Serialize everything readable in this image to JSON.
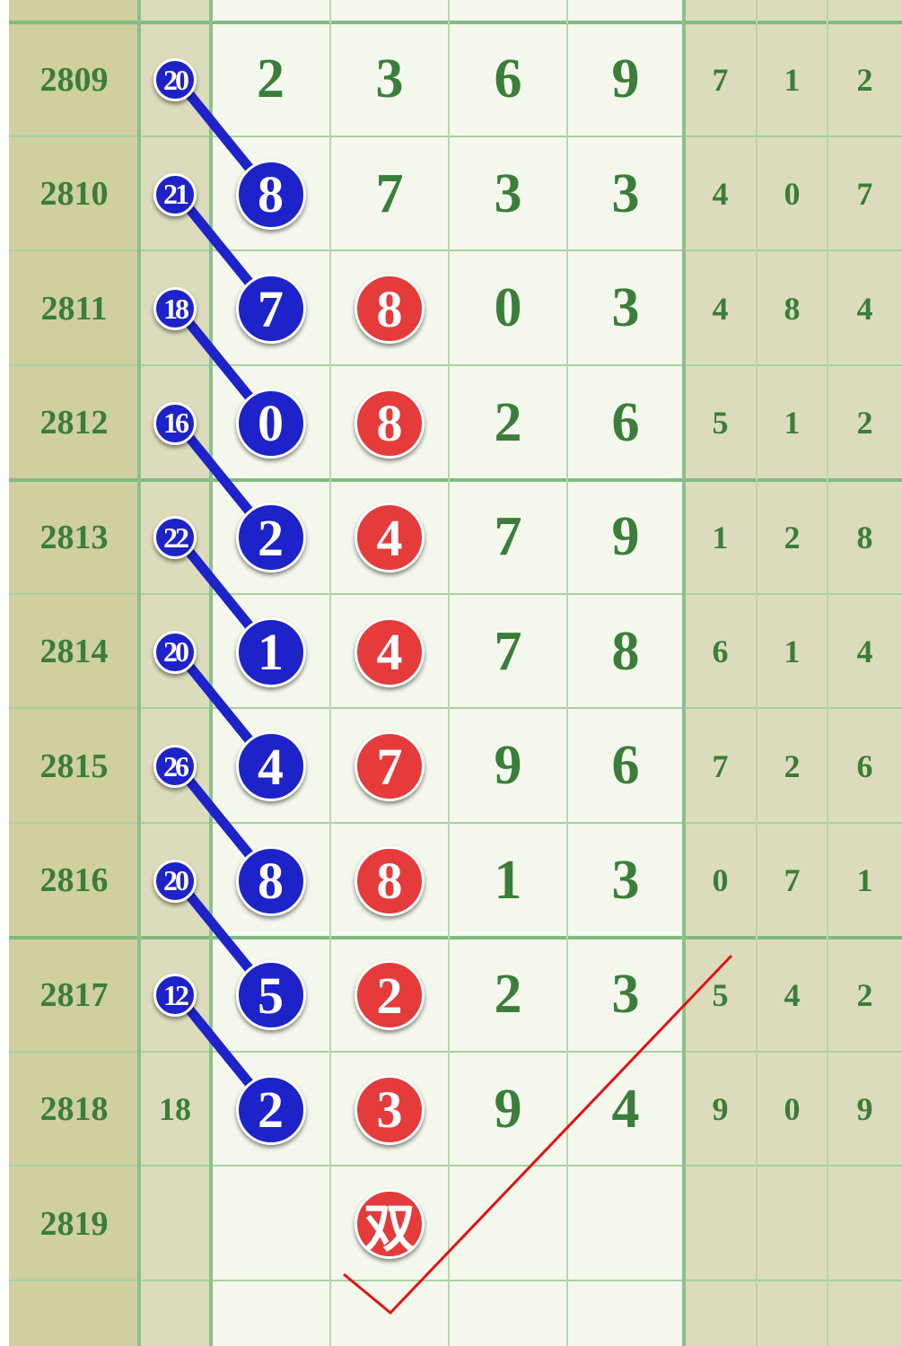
{
  "colors": {
    "issue_bg": "#cfcf9f",
    "side_bg": "#dcdcbc",
    "main_bg": "#f4f8ec",
    "text_green": "#3b7d3b",
    "ball_blue": "#1d22c9",
    "ball_red": "#e53b3b",
    "check_red": "#e81010"
  },
  "rows": [
    {
      "issue": "2809",
      "sum": "20",
      "sum_ball": true,
      "d1": "2",
      "d2": "3",
      "d3": "6",
      "d4": "9",
      "d1_ball": false,
      "d2_ball": false,
      "r1": "7",
      "r2": "1",
      "r3": "2"
    },
    {
      "issue": "2810",
      "sum": "21",
      "sum_ball": true,
      "d1": "8",
      "d2": "7",
      "d3": "3",
      "d4": "3",
      "d1_ball": true,
      "d2_ball": false,
      "r1": "4",
      "r2": "0",
      "r3": "7"
    },
    {
      "issue": "2811",
      "sum": "18",
      "sum_ball": true,
      "d1": "7",
      "d2": "8",
      "d3": "0",
      "d4": "3",
      "d1_ball": true,
      "d2_ball": true,
      "r1": "4",
      "r2": "8",
      "r3": "4"
    },
    {
      "issue": "2812",
      "sum": "16",
      "sum_ball": true,
      "d1": "0",
      "d2": "8",
      "d3": "2",
      "d4": "6",
      "d1_ball": true,
      "d2_ball": true,
      "r1": "5",
      "r2": "1",
      "r3": "2"
    },
    {
      "issue": "2813",
      "sum": "22",
      "sum_ball": true,
      "d1": "2",
      "d2": "4",
      "d3": "7",
      "d4": "9",
      "d1_ball": true,
      "d2_ball": true,
      "r1": "1",
      "r2": "2",
      "r3": "8"
    },
    {
      "issue": "2814",
      "sum": "20",
      "sum_ball": true,
      "d1": "1",
      "d2": "4",
      "d3": "7",
      "d4": "8",
      "d1_ball": true,
      "d2_ball": true,
      "r1": "6",
      "r2": "1",
      "r3": "4"
    },
    {
      "issue": "2815",
      "sum": "26",
      "sum_ball": true,
      "d1": "4",
      "d2": "7",
      "d3": "9",
      "d4": "6",
      "d1_ball": true,
      "d2_ball": true,
      "r1": "7",
      "r2": "2",
      "r3": "6"
    },
    {
      "issue": "2816",
      "sum": "20",
      "sum_ball": true,
      "d1": "8",
      "d2": "8",
      "d3": "1",
      "d4": "3",
      "d1_ball": true,
      "d2_ball": true,
      "r1": "0",
      "r2": "7",
      "r3": "1"
    },
    {
      "issue": "2817",
      "sum": "12",
      "sum_ball": true,
      "d1": "5",
      "d2": "2",
      "d3": "2",
      "d4": "3",
      "d1_ball": true,
      "d2_ball": true,
      "r1": "5",
      "r2": "4",
      "r3": "2"
    },
    {
      "issue": "2818",
      "sum": "18",
      "sum_ball": false,
      "d1": "2",
      "d2": "3",
      "d3": "9",
      "d4": "4",
      "d1_ball": true,
      "d2_ball": true,
      "r1": "9",
      "r2": "0",
      "r3": "9"
    },
    {
      "issue": "2819",
      "sum": "",
      "sum_ball": false,
      "d1": "",
      "d2": "双",
      "d3": "",
      "d4": "",
      "d1_ball": false,
      "d2_ball": true,
      "r1": "",
      "r2": "",
      "r3": ""
    }
  ]
}
